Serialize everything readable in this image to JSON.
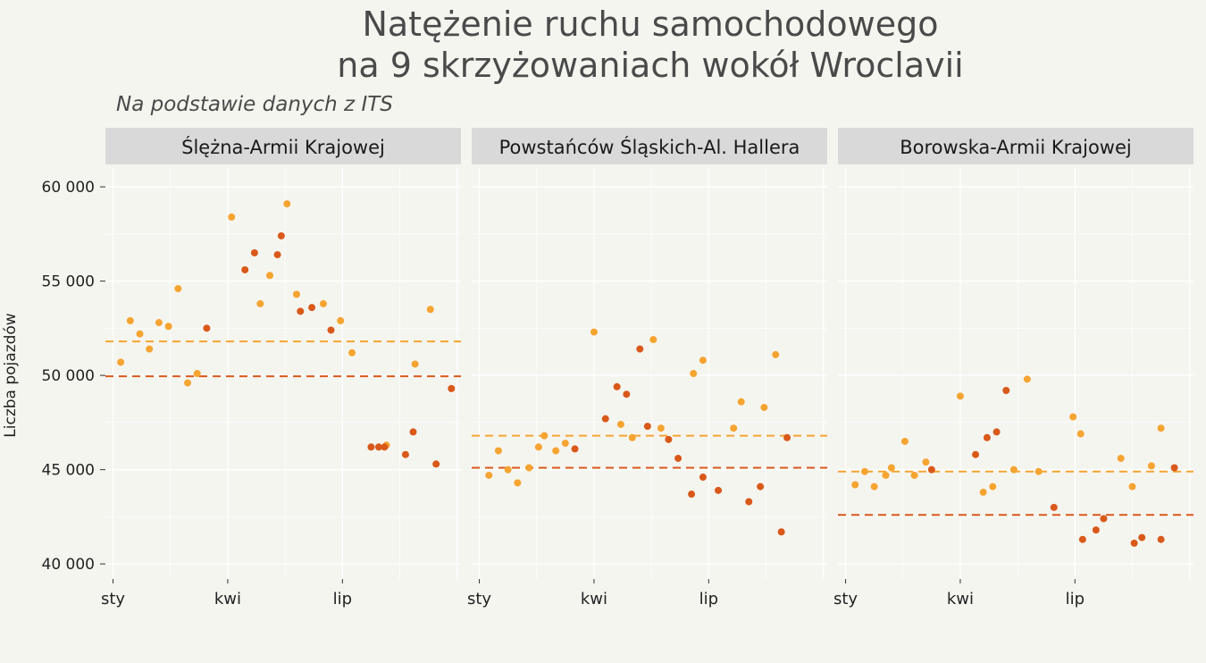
{
  "chart_data": {
    "type": "scatter",
    "title_line1": "Natężenie ruchu samochodowego",
    "title_line2": "na 9 skrzyżowaniach wokół Wroclavii",
    "subtitle": "Na podstawie danych z ITS",
    "xlabel": "",
    "ylabel": "Liczba pojazdów",
    "ylim": [
      39200,
      61000
    ],
    "y_ticks": [
      {
        "value": 40000,
        "label": "40 000"
      },
      {
        "value": 45000,
        "label": "45 000"
      },
      {
        "value": 50000,
        "label": "50 000"
      },
      {
        "value": 55000,
        "label": "55 000"
      },
      {
        "value": 60000,
        "label": "60 000"
      }
    ],
    "x_ticks": [
      {
        "month": 1,
        "label": "sty"
      },
      {
        "month": 4,
        "label": "kwi"
      },
      {
        "month": 7,
        "label": "lip"
      }
    ],
    "x_range_months": [
      0.8,
      10.1
    ],
    "grid": true,
    "colors": {
      "light": "#f6a431",
      "dark": "#d9591a",
      "strip": "#d9d9d9",
      "grid": "#ffffff"
    },
    "panels": [
      {
        "name": "Ślężna-Armii Krajowej",
        "mean_light": 51800,
        "mean_dark": 49950,
        "light": [
          [
            1.2,
            50700
          ],
          [
            1.45,
            52900
          ],
          [
            1.7,
            52200
          ],
          [
            1.95,
            51400
          ],
          [
            2.2,
            52800
          ],
          [
            2.45,
            52600
          ],
          [
            2.7,
            54600
          ],
          [
            2.95,
            49600
          ],
          [
            3.2,
            50100
          ],
          [
            4.1,
            58400
          ],
          [
            4.85,
            53800
          ],
          [
            5.1,
            55300
          ],
          [
            5.55,
            59100
          ],
          [
            5.8,
            54300
          ],
          [
            6.5,
            53800
          ],
          [
            6.95,
            52900
          ],
          [
            7.25,
            51200
          ],
          [
            8.15,
            46300
          ],
          [
            8.9,
            50600
          ],
          [
            9.3,
            53500
          ]
        ],
        "dark": [
          [
            3.45,
            52500
          ],
          [
            4.45,
            55600
          ],
          [
            4.7,
            56500
          ],
          [
            5.3,
            56400
          ],
          [
            5.4,
            57400
          ],
          [
            5.9,
            53400
          ],
          [
            6.2,
            53600
          ],
          [
            6.7,
            52400
          ],
          [
            7.75,
            46200
          ],
          [
            7.95,
            46200
          ],
          [
            8.1,
            46200
          ],
          [
            8.65,
            45800
          ],
          [
            8.85,
            47000
          ],
          [
            9.45,
            45300
          ],
          [
            9.85,
            49300
          ]
        ]
      },
      {
        "name": "Powstańców Śląskich-Al. Hallera",
        "mean_light": 46800,
        "mean_dark": 45100,
        "light": [
          [
            1.25,
            44700
          ],
          [
            1.5,
            46000
          ],
          [
            1.75,
            45000
          ],
          [
            2.0,
            44300
          ],
          [
            2.3,
            45100
          ],
          [
            2.55,
            46200
          ],
          [
            2.7,
            46800
          ],
          [
            3.0,
            46000
          ],
          [
            3.25,
            46400
          ],
          [
            4.0,
            52300
          ],
          [
            4.7,
            47400
          ],
          [
            5.0,
            46700
          ],
          [
            5.55,
            51900
          ],
          [
            5.75,
            47200
          ],
          [
            6.6,
            50100
          ],
          [
            6.85,
            50800
          ],
          [
            7.85,
            48600
          ],
          [
            7.65,
            47200
          ],
          [
            8.45,
            48300
          ],
          [
            8.75,
            51100
          ]
        ],
        "dark": [
          [
            3.5,
            46100
          ],
          [
            4.3,
            47700
          ],
          [
            4.6,
            49400
          ],
          [
            4.85,
            49000
          ],
          [
            5.2,
            51400
          ],
          [
            5.4,
            47300
          ],
          [
            5.95,
            46600
          ],
          [
            6.2,
            45600
          ],
          [
            6.55,
            43700
          ],
          [
            6.85,
            44600
          ],
          [
            7.25,
            43900
          ],
          [
            8.05,
            43300
          ],
          [
            8.35,
            44100
          ],
          [
            8.9,
            41700
          ],
          [
            9.05,
            46700
          ]
        ]
      },
      {
        "name": "Borowska-Armii Krajowej",
        "mean_light": 44900,
        "mean_dark": 42600,
        "light": [
          [
            1.25,
            44200
          ],
          [
            1.5,
            44900
          ],
          [
            1.75,
            44100
          ],
          [
            2.05,
            44700
          ],
          [
            2.2,
            45100
          ],
          [
            2.55,
            46500
          ],
          [
            2.8,
            44700
          ],
          [
            3.1,
            45400
          ],
          [
            4.0,
            48900
          ],
          [
            4.6,
            43800
          ],
          [
            4.85,
            44100
          ],
          [
            5.4,
            45000
          ],
          [
            5.75,
            49800
          ],
          [
            6.05,
            44900
          ],
          [
            6.95,
            47800
          ],
          [
            7.15,
            46900
          ],
          [
            8.2,
            45600
          ],
          [
            8.5,
            44100
          ],
          [
            9.0,
            45200
          ],
          [
            9.25,
            47200
          ]
        ],
        "dark": [
          [
            3.25,
            45000
          ],
          [
            4.4,
            45800
          ],
          [
            4.7,
            46700
          ],
          [
            4.95,
            47000
          ],
          [
            5.2,
            49200
          ],
          [
            6.45,
            43000
          ],
          [
            7.2,
            41300
          ],
          [
            7.55,
            41800
          ],
          [
            7.75,
            42400
          ],
          [
            8.55,
            41100
          ],
          [
            8.75,
            41400
          ],
          [
            9.25,
            41300
          ],
          [
            9.6,
            45100
          ]
        ]
      }
    ]
  }
}
